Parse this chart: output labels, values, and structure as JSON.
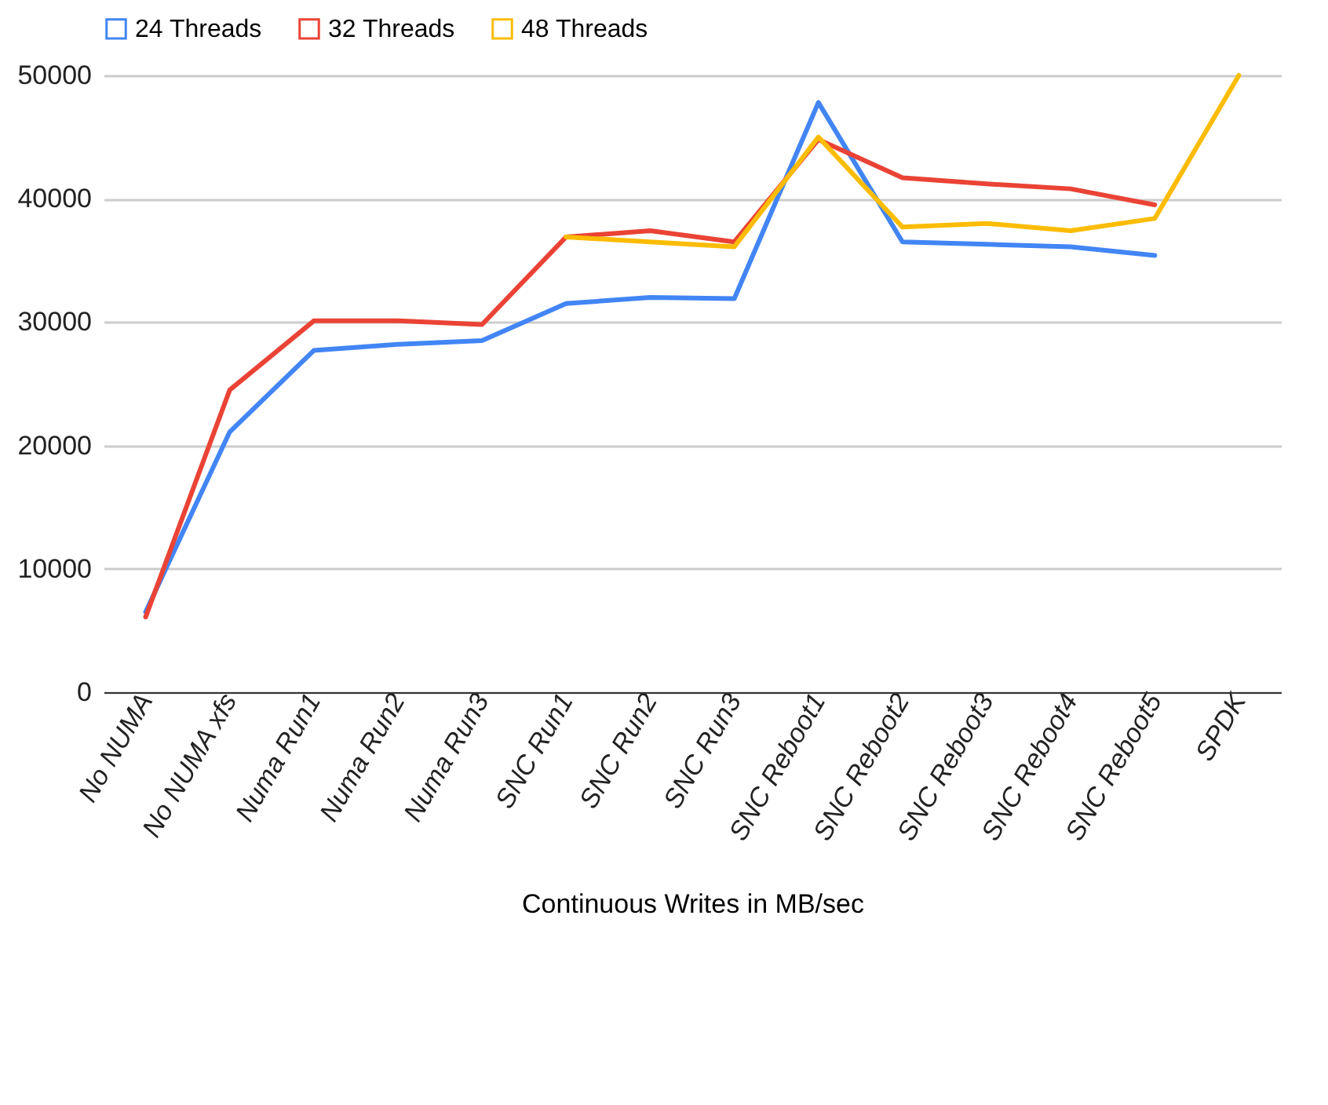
{
  "chart_data": {
    "type": "line",
    "xlabel": "Continuous Writes in MB/sec",
    "categories": [
      "No NUMA",
      "No NUMA xfs",
      "Numa Run1",
      "Numa Run2",
      "Numa Run3",
      "SNC Run1",
      "SNC Run2",
      "SNC Run3",
      "SNC Reboot1",
      "SNC Reboot2",
      "SNC Reboot3",
      "SNC Reboot4",
      "SNC Reboot5",
      "SPDK"
    ],
    "series": [
      {
        "name": "24 Threads",
        "color": "#4285f4",
        "values": [
          6500,
          21100,
          27700,
          28200,
          28500,
          31500,
          32000,
          31900,
          47800,
          36500,
          36300,
          36100,
          35400,
          null
        ]
      },
      {
        "name": "32 Threads",
        "color": "#ea4335",
        "values": [
          6100,
          24500,
          30100,
          30100,
          29800,
          36900,
          37400,
          36500,
          44800,
          41700,
          41200,
          40800,
          39500,
          null
        ]
      },
      {
        "name": "48 Threads",
        "color": "#fbbc04",
        "values": [
          null,
          null,
          null,
          null,
          null,
          36900,
          36500,
          36100,
          45000,
          37700,
          38000,
          37400,
          38400,
          50000
        ]
      }
    ],
    "ylim": [
      0,
      50000
    ],
    "yticks": [
      0,
      10000,
      20000,
      30000,
      40000,
      50000
    ],
    "grid": "y",
    "legend": "top",
    "marker": "none",
    "line_style": "solid"
  }
}
